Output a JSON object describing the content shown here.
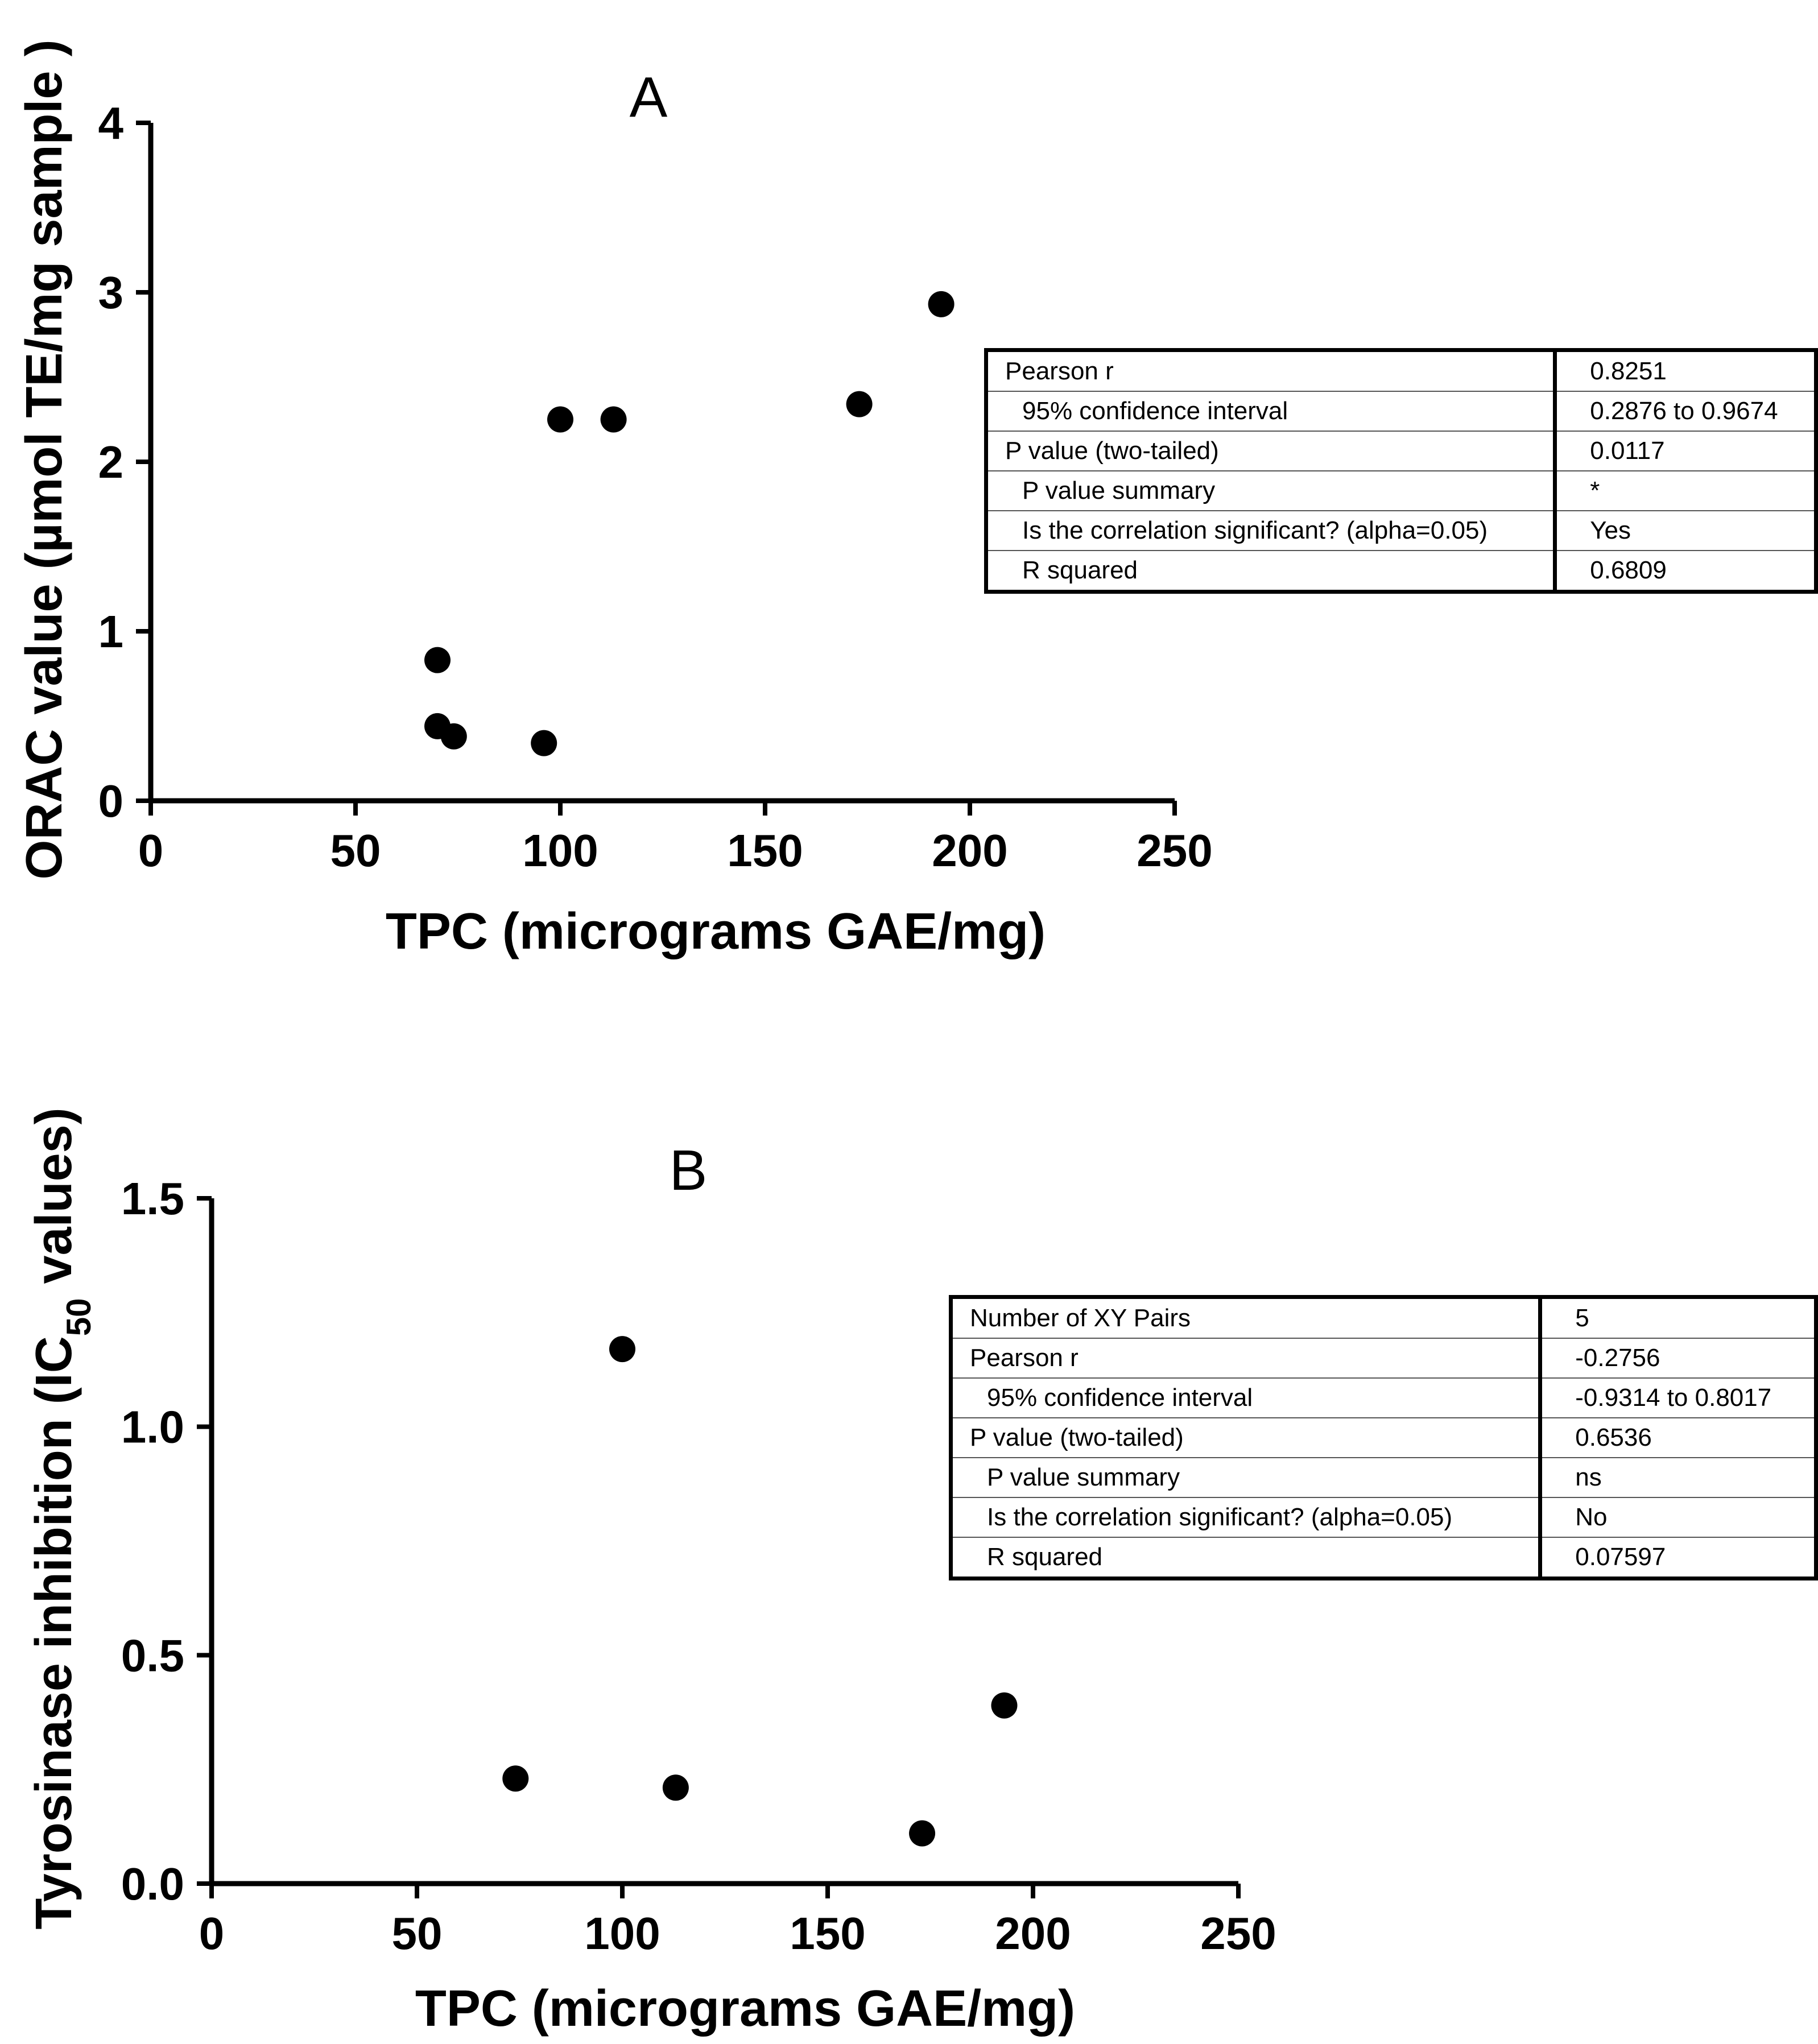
{
  "chart_data": [
    {
      "type": "scatter",
      "panel_label": "A",
      "xlabel": "TPC (micrograms GAE/mg)",
      "ylabel": "ORAC value (µmol TE/mg sample )",
      "xlim": [
        0,
        250
      ],
      "ylim": [
        0,
        4
      ],
      "xticks": [
        0,
        50,
        100,
        150,
        200,
        250
      ],
      "yticks": [
        0,
        1,
        2,
        3,
        4
      ],
      "ytick_labels": [
        "0",
        "1",
        "2",
        "3",
        "4"
      ],
      "points": [
        {
          "x": 70,
          "y": 0.83
        },
        {
          "x": 70,
          "y": 0.44
        },
        {
          "x": 74,
          "y": 0.38
        },
        {
          "x": 96,
          "y": 0.34
        },
        {
          "x": 100,
          "y": 2.25
        },
        {
          "x": 113,
          "y": 2.25
        },
        {
          "x": 173,
          "y": 2.34
        },
        {
          "x": 193,
          "y": 2.93
        }
      ],
      "stats": [
        {
          "label": "Pearson r",
          "indent": 0,
          "value": "0.8251"
        },
        {
          "label": "95% confidence interval",
          "indent": 1,
          "value": "0.2876 to 0.9674"
        },
        {
          "label": "P value (two-tailed)",
          "indent": 0,
          "value": "0.0117"
        },
        {
          "label": "P value summary",
          "indent": 1,
          "value": "*"
        },
        {
          "label": "Is the correlation significant? (alpha=0.05)",
          "indent": 1,
          "value": "Yes"
        },
        {
          "label": "R squared",
          "indent": 1,
          "value": "0.6809"
        }
      ]
    },
    {
      "type": "scatter",
      "panel_label": "B",
      "xlabel": "TPC (micrograms GAE/mg)",
      "ylabel_prefix": "Tyrosinase inhibition (IC",
      "ylabel_sub": "50",
      "ylabel_suffix": " values)",
      "xlim": [
        0,
        250
      ],
      "ylim": [
        0,
        1.5
      ],
      "xticks": [
        0,
        50,
        100,
        150,
        200,
        250
      ],
      "yticks": [
        0,
        0.5,
        1.0,
        1.5
      ],
      "ytick_labels": [
        "0.0",
        "0.5",
        "1.0",
        "1.5"
      ],
      "points": [
        {
          "x": 74,
          "y": 0.23
        },
        {
          "x": 100,
          "y": 1.17
        },
        {
          "x": 113,
          "y": 0.21
        },
        {
          "x": 173,
          "y": 0.11
        },
        {
          "x": 193,
          "y": 0.39
        }
      ],
      "stats": [
        {
          "label": "Number of XY Pairs",
          "indent": 0,
          "value": "5"
        },
        {
          "label": "Pearson r",
          "indent": 0,
          "value": "-0.2756"
        },
        {
          "label": "95% confidence interval",
          "indent": 1,
          "value": "-0.9314 to 0.8017"
        },
        {
          "label": "P value (two-tailed)",
          "indent": 0,
          "value": "0.6536"
        },
        {
          "label": "P value summary",
          "indent": 1,
          "value": "ns"
        },
        {
          "label": "Is the correlation significant? (alpha=0.05)",
          "indent": 1,
          "value": "No"
        },
        {
          "label": "R squared",
          "indent": 1,
          "value": "0.07597"
        }
      ]
    }
  ]
}
